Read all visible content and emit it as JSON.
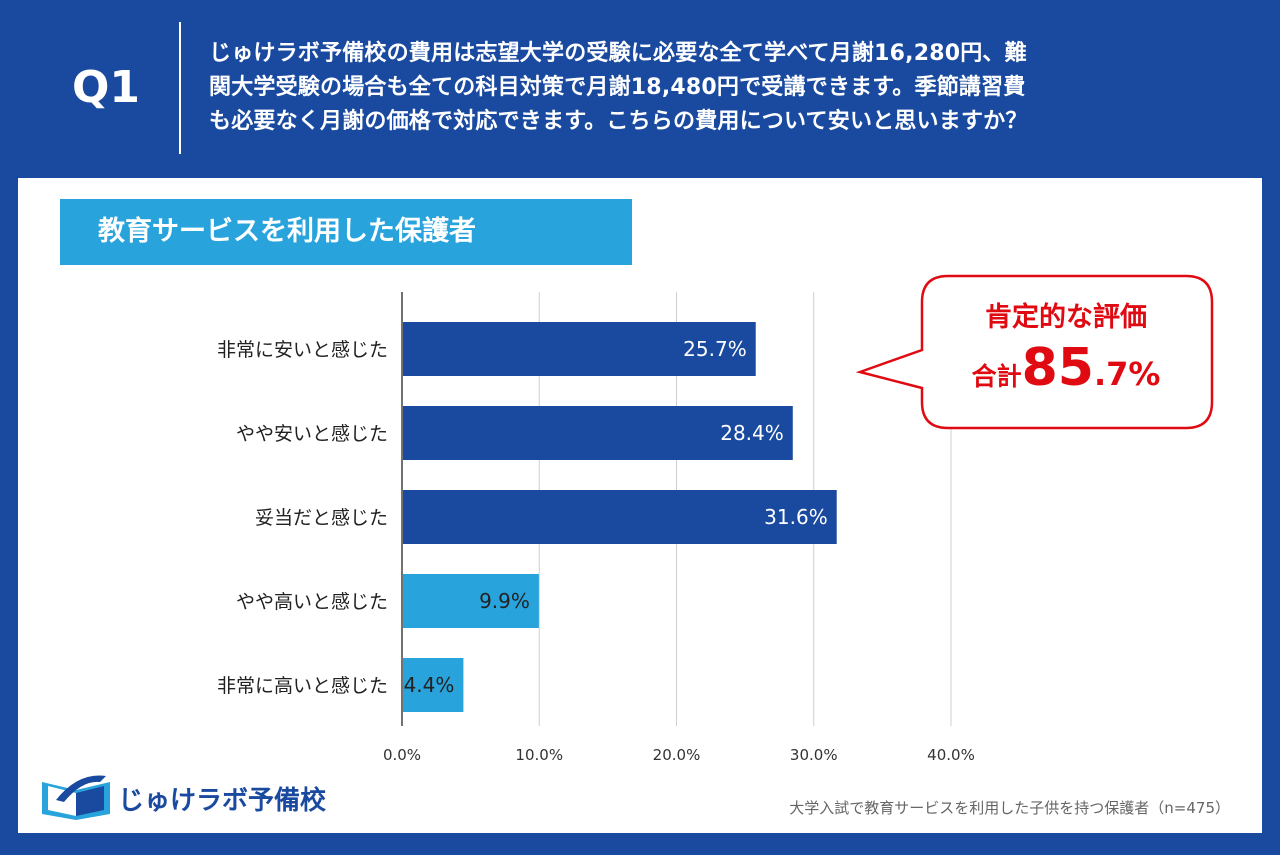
{
  "header": {
    "q_label": "Q1",
    "question_line1": "じゅけラボ予備校の費用は志望大学の受験に必要な全て学べて月謝16,280円、難",
    "question_line2": "関大学受験の場合も全ての科目対策で月謝18,480円で受講できます。季節講習費",
    "question_line3": "も必要なく月謝の価格で対応できます。こちらの費用について安いと思いますか？"
  },
  "subtitle": "教育サービスを利用した保護者",
  "callout": {
    "title": "肯定的な評価",
    "total_prefix": "合計",
    "total_int": "85",
    "total_dec": ".7%"
  },
  "logo": {
    "text": "じゅけラボ予備校"
  },
  "source": "大学入試で教育サービスを利用した子供を持つ保護者（n=475）",
  "colors": {
    "dark_bar": "#1a4a9f",
    "light_bar": "#29a3dc",
    "accent_red": "#e00b12",
    "background": "#1a4a9f"
  },
  "chart_data": {
    "type": "bar",
    "orientation": "horizontal",
    "categories": [
      "非常に安いと感じた",
      "やや安いと感じた",
      "妥当だと感じた",
      "やや高いと感じた",
      "非常に高いと感じた"
    ],
    "values": [
      25.7,
      28.4,
      31.6,
      9.9,
      4.4
    ],
    "data_labels": [
      "25.7%",
      "28.4%",
      "31.6%",
      "9.9%",
      "4.4%"
    ],
    "bar_colors": [
      "#1a4a9f",
      "#1a4a9f",
      "#1a4a9f",
      "#29a3dc",
      "#29a3dc"
    ],
    "label_colors": [
      "#ffffff",
      "#ffffff",
      "#ffffff",
      "#222222",
      "#222222"
    ],
    "xlim": [
      0,
      40
    ],
    "x_ticks": [
      0,
      10,
      20,
      30,
      40
    ],
    "x_tick_labels": [
      "0.0%",
      "10.0%",
      "20.0%",
      "30.0%",
      "40.0%"
    ],
    "grid": true
  }
}
